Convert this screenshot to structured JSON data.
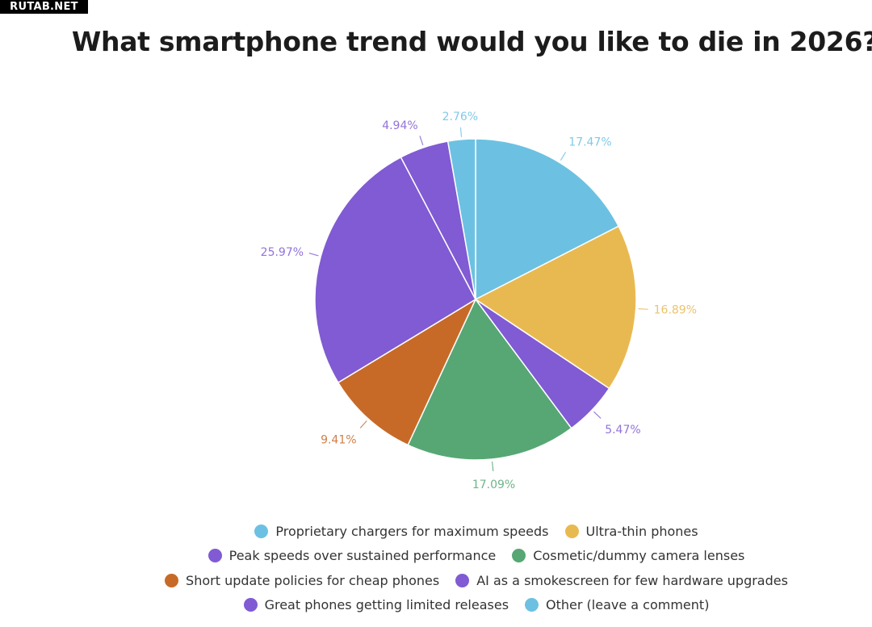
{
  "watermark": "RUTAB.NET",
  "chart_data": {
    "type": "pie",
    "title": "What smartphone trend would you like to die in 2026?",
    "legend_position": "bottom",
    "slices": [
      {
        "label": "Proprietary chargers for maximum speeds",
        "value": 17.47,
        "display": "17.47%",
        "color": "#6cc1e2"
      },
      {
        "label": "Ultra-thin phones",
        "value": 16.89,
        "display": "16.89%",
        "color": "#e9b951"
      },
      {
        "label": "Peak speeds over sustained performance",
        "value": 5.47,
        "display": "5.47%",
        "color": "#805bd3"
      },
      {
        "label": "Cosmetic/dummy camera lenses",
        "value": 17.09,
        "display": "17.09%",
        "color": "#56a774"
      },
      {
        "label": "Short update policies for cheap phones",
        "value": 9.41,
        "display": "9.41%",
        "color": "#c76a28"
      },
      {
        "label": "AI as a smokescreen for few hardware upgrades",
        "value": 25.97,
        "display": "25.97%",
        "color": "#805bd3"
      },
      {
        "label": "Great phones getting limited releases",
        "value": 4.94,
        "display": "4.94%",
        "color": "#805bd3"
      },
      {
        "label": "Other (leave a comment)",
        "value": 2.76,
        "display": "2.76%",
        "color": "#6cc1e2"
      }
    ]
  }
}
